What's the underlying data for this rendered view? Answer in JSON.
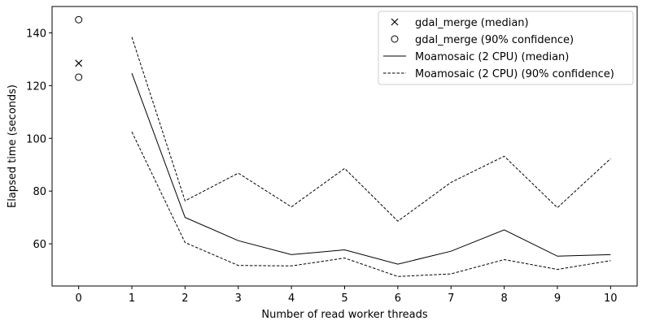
{
  "chart_data": {
    "type": "line",
    "xlabel": "Number of read worker threads",
    "ylabel": "Elapsed time (seconds)",
    "xlim": [
      -0.5,
      10.5
    ],
    "ylim": [
      44,
      150
    ],
    "xticks": [
      0,
      1,
      2,
      3,
      4,
      5,
      6,
      7,
      8,
      9,
      10
    ],
    "yticks": [
      60,
      80,
      100,
      120,
      140
    ],
    "grid": false,
    "legend_position": "top-right",
    "series": [
      {
        "name": "gdal_merge (median)",
        "marker": "x",
        "line": "none",
        "color": "#000000",
        "points": [
          {
            "x": 0,
            "y": 128.5
          }
        ]
      },
      {
        "name": "gdal_merge (90% confidence)",
        "marker": "circle-open",
        "line": "none",
        "color": "#000000",
        "points": [
          {
            "x": 0,
            "y": 145
          },
          {
            "x": 0,
            "y": 123.2
          }
        ]
      },
      {
        "name": "Moamosaic (2 CPU) (median)",
        "marker": "none",
        "line": "solid",
        "color": "#000000",
        "x": [
          1,
          2,
          3,
          4,
          5,
          6,
          7,
          8,
          9,
          10
        ],
        "y": [
          124.7,
          70.0,
          61.2,
          55.9,
          57.7,
          52.3,
          57.2,
          65.3,
          55.3,
          55.9
        ]
      },
      {
        "name": "Moamosaic (2 CPU) (90% confidence)",
        "marker": "none",
        "line": "dashed",
        "color": "#000000",
        "bands": [
          {
            "x": [
              1,
              2,
              3,
              4,
              5,
              6,
              7,
              8,
              9,
              10
            ],
            "y": [
              138.4,
              76.3,
              86.8,
              74.0,
              88.6,
              68.6,
              83.3,
              93.2,
              73.7,
              92.3
            ]
          },
          {
            "x": [
              1,
              2,
              3,
              4,
              5,
              6,
              7,
              8,
              9,
              10
            ],
            "y": [
              102.5,
              60.5,
              51.8,
              51.6,
              54.6,
              47.6,
              48.6,
              54.0,
              50.3,
              53.6
            ]
          }
        ]
      }
    ]
  }
}
